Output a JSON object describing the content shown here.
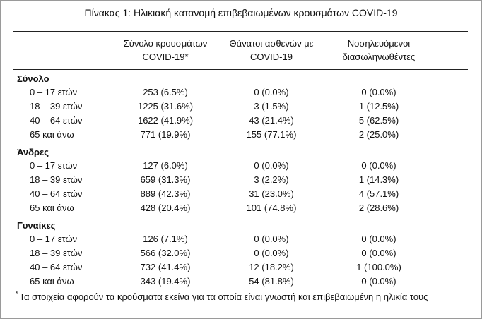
{
  "title": "Πίνακας 1: Ηλικιακή κατανομή επιβεβαιωμένων κρουσμάτων COVID-19",
  "columns": {
    "cases": {
      "line1": "Σύνολο κρουσμάτων",
      "line2": "COVID-19*"
    },
    "deaths": {
      "line1": "Θάνατοι ασθενών με",
      "line2": "COVID-19"
    },
    "hospitalized": {
      "line1": "Νοσηλευόμενοι",
      "line2": "διασωληνωθέντες"
    }
  },
  "sections": [
    {
      "name": "Σύνολο",
      "rows": [
        {
          "age": "0 – 17 ετών",
          "cases": "253 (6.5%)",
          "deaths": "0 (0.0%)",
          "hospitalized": "0 (0.0%)"
        },
        {
          "age": "18 – 39 ετών",
          "cases": "1225 (31.6%)",
          "deaths": "3 (1.5%)",
          "hospitalized": "1 (12.5%)"
        },
        {
          "age": "40 – 64 ετών",
          "cases": "1622 (41.9%)",
          "deaths": "43 (21.4%)",
          "hospitalized": "5 (62.5%)"
        },
        {
          "age": "65 και άνω",
          "cases": "771 (19.9%)",
          "deaths": "155 (77.1%)",
          "hospitalized": "2 (25.0%)"
        }
      ]
    },
    {
      "name": "Άνδρες",
      "rows": [
        {
          "age": "0 – 17 ετών",
          "cases": "127 (6.0%)",
          "deaths": "0 (0.0%)",
          "hospitalized": "0 (0.0%)"
        },
        {
          "age": "18 – 39 ετών",
          "cases": "659 (31.3%)",
          "deaths": "3 (2.2%)",
          "hospitalized": "1 (14.3%)"
        },
        {
          "age": "40 – 64 ετών",
          "cases": "889 (42.3%)",
          "deaths": "31 (23.0%)",
          "hospitalized": "4 (57.1%)"
        },
        {
          "age": "65 και άνω",
          "cases": "428 (20.4%)",
          "deaths": "101 (74.8%)",
          "hospitalized": "2 (28.6%)"
        }
      ]
    },
    {
      "name": "Γυναίκες",
      "rows": [
        {
          "age": "0 – 17 ετών",
          "cases": "126 (7.1%)",
          "deaths": "0 (0.0%)",
          "hospitalized": "0 (0.0%)"
        },
        {
          "age": "18 – 39 ετών",
          "cases": "566 (32.0%)",
          "deaths": "0 (0.0%)",
          "hospitalized": "0 (0.0%)"
        },
        {
          "age": "40 – 64 ετών",
          "cases": "732 (41.4%)",
          "deaths": "12 (18.2%)",
          "hospitalized": "1 (100.0%)"
        },
        {
          "age": "65 και άνω",
          "cases": "343 (19.4%)",
          "deaths": "54 (81.8%)",
          "hospitalized": "0 (0.0%)"
        }
      ]
    }
  ],
  "footnote": {
    "marker": "*",
    "text": "Τα στοιχεία αφορούν τα κρούσματα εκείνα για τα οποία είναι γνωστή και επιβεβαιωμένη η ηλικία τους"
  }
}
